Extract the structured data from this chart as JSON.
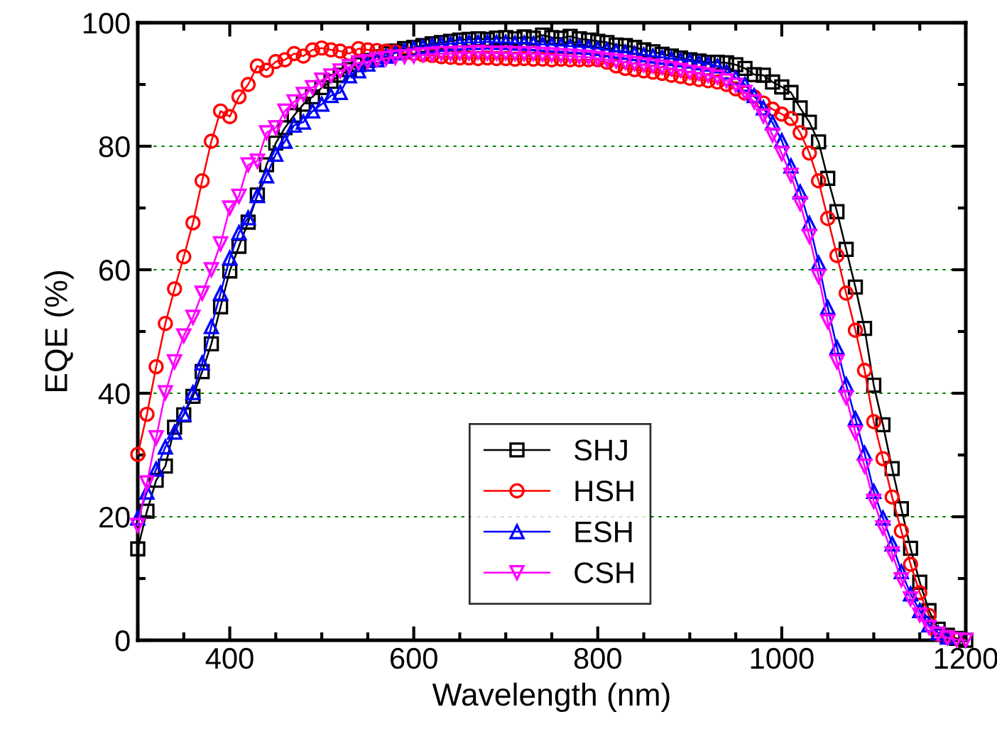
{
  "chart_data": {
    "type": "line",
    "xlabel": "Wavelength (nm)",
    "ylabel": "EQE (%)",
    "x": [
      300,
      310,
      320,
      330,
      340,
      350,
      360,
      370,
      380,
      390,
      400,
      410,
      420,
      430,
      440,
      450,
      460,
      470,
      480,
      490,
      500,
      510,
      520,
      530,
      540,
      550,
      560,
      570,
      580,
      590,
      600,
      610,
      620,
      630,
      640,
      650,
      660,
      670,
      680,
      690,
      700,
      710,
      720,
      730,
      740,
      750,
      760,
      770,
      780,
      790,
      800,
      810,
      820,
      830,
      840,
      850,
      860,
      870,
      880,
      890,
      900,
      910,
      920,
      930,
      940,
      950,
      960,
      970,
      980,
      990,
      1000,
      1010,
      1020,
      1030,
      1040,
      1050,
      1060,
      1070,
      1080,
      1090,
      1100,
      1110,
      1120,
      1130,
      1140,
      1150,
      1160,
      1170,
      1180,
      1190,
      1200
    ],
    "series": [
      {
        "name": "SHJ",
        "color": "#000000",
        "marker": "square",
        "values": [
          14.8,
          20.9,
          25.9,
          28.2,
          34.5,
          36.5,
          39.5,
          43.5,
          48.0,
          54.0,
          59.8,
          63.8,
          67.7,
          72.1,
          77.0,
          80.5,
          83.0,
          85.0,
          86.8,
          88.0,
          89.5,
          90.5,
          91.5,
          92.4,
          93.2,
          93.9,
          94.5,
          95.0,
          95.4,
          95.8,
          96.0,
          96.3,
          96.6,
          96.8,
          97.0,
          97.2,
          97.3,
          97.4,
          97.3,
          97.5,
          97.6,
          97.4,
          97.7,
          97.5,
          98.0,
          97.6,
          97.5,
          97.8,
          97.4,
          97.2,
          97.0,
          96.8,
          96.4,
          96.3,
          96.0,
          95.6,
          95.3,
          94.9,
          94.6,
          94.3,
          94.0,
          93.8,
          93.6,
          93.6,
          93.5,
          93.2,
          92.6,
          91.6,
          91.5,
          90.4,
          89.6,
          88.7,
          86.2,
          83.9,
          80.7,
          74.8,
          69.4,
          63.3,
          57.2,
          50.5,
          41.3,
          34.9,
          27.8,
          21.3,
          14.9,
          9.4,
          4.8,
          1.8,
          0.8,
          0.3,
          0.0
        ]
      },
      {
        "name": "HSH",
        "color": "#ff0000",
        "marker": "circle",
        "values": [
          30.1,
          36.6,
          44.3,
          51.3,
          56.9,
          62.1,
          67.6,
          74.4,
          80.8,
          85.7,
          84.8,
          88.0,
          90.0,
          93.0,
          92.3,
          93.7,
          94.0,
          95.0,
          94.6,
          95.6,
          95.9,
          95.6,
          95.4,
          95.0,
          95.8,
          95.6,
          95.5,
          95.4,
          95.3,
          95.1,
          95.0,
          94.8,
          94.7,
          94.5,
          94.4,
          94.3,
          94.3,
          94.2,
          94.3,
          94.2,
          94.2,
          94.1,
          94.2,
          94.1,
          94.1,
          94.0,
          94.1,
          94.0,
          94.0,
          94.0,
          94.0,
          93.6,
          93.0,
          92.6,
          92.4,
          92.2,
          92.0,
          91.8,
          91.5,
          91.3,
          91.0,
          90.8,
          90.6,
          90.4,
          90.0,
          89.3,
          88.6,
          88.0,
          87.0,
          86.0,
          85.2,
          84.5,
          82.2,
          78.9,
          74.4,
          68.3,
          62.3,
          56.2,
          50.2,
          43.7,
          35.4,
          29.4,
          23.2,
          17.7,
          12.3,
          7.7,
          4.0,
          1.0,
          0.5,
          null,
          null
        ]
      },
      {
        "name": "ESH",
        "color": "#0000ff",
        "marker": "triangle",
        "values": [
          19.8,
          24.0,
          27.7,
          31.3,
          33.7,
          36.6,
          40.1,
          44.9,
          50.8,
          56.2,
          61.9,
          66.0,
          68.4,
          72.0,
          75.2,
          78.7,
          80.8,
          83.4,
          83.9,
          85.7,
          86.8,
          88.2,
          88.7,
          91.4,
          92.2,
          93.3,
          94.0,
          94.6,
          95.1,
          95.5,
          95.8,
          96.1,
          96.3,
          96.5,
          96.6,
          96.7,
          96.8,
          96.8,
          96.9,
          96.8,
          96.8,
          96.7,
          96.7,
          96.6,
          96.5,
          96.4,
          96.3,
          96.2,
          96.1,
          96.0,
          95.8,
          95.6,
          95.4,
          95.2,
          95.0,
          94.8,
          94.6,
          94.4,
          94.2,
          94.0,
          93.8,
          93.5,
          93.3,
          93.0,
          92.0,
          91.1,
          90.0,
          88.2,
          86.2,
          83.8,
          80.9,
          76.8,
          72.6,
          67.5,
          61.1,
          53.9,
          47.4,
          41.4,
          35.9,
          30.3,
          24.1,
          19.8,
          15.6,
          11.1,
          7.5,
          4.8,
          2.5,
          1.2,
          0.5,
          null,
          null
        ]
      },
      {
        "name": "CSH",
        "color": "#ff00ff",
        "marker": "triangle_down",
        "values": [
          18.6,
          25.5,
          32.8,
          40.1,
          45.1,
          49.3,
          52.3,
          56.2,
          60.0,
          64.2,
          70.0,
          71.9,
          77.0,
          77.6,
          82.2,
          83.0,
          85.7,
          87.2,
          88.4,
          89.5,
          90.7,
          91.4,
          92.2,
          92.9,
          93.5,
          93.7,
          94.0,
          94.2,
          94.4,
          94.5,
          94.6,
          94.8,
          94.9,
          95.0,
          95.0,
          95.1,
          95.1,
          95.2,
          95.1,
          95.1,
          95.1,
          95.0,
          95.0,
          95.0,
          94.9,
          94.8,
          94.7,
          94.6,
          94.5,
          94.4,
          94.2,
          94.0,
          93.8,
          93.6,
          93.4,
          93.2,
          93.0,
          92.8,
          92.6,
          92.3,
          92.0,
          91.8,
          91.5,
          91.2,
          90.6,
          89.9,
          88.7,
          87.2,
          84.9,
          81.8,
          78.8,
          75.3,
          70.7,
          65.4,
          58.9,
          51.6,
          45.1,
          39.3,
          33.6,
          28.2,
          22.5,
          18.2,
          14.0,
          9.8,
          6.7,
          4.1,
          2.1,
          1.0,
          0.4,
          0.1,
          0.0
        ]
      }
    ],
    "xlim": [
      300,
      1200
    ],
    "xticks": [
      {
        "value": 300,
        "label": null
      },
      400,
      600,
      800,
      1000,
      1200
    ],
    "ylim": [
      0,
      100
    ],
    "yticks": [
      0,
      20,
      40,
      60,
      80,
      100
    ],
    "grid": "y",
    "legend": "bottom",
    "line_style": "solid"
  }
}
